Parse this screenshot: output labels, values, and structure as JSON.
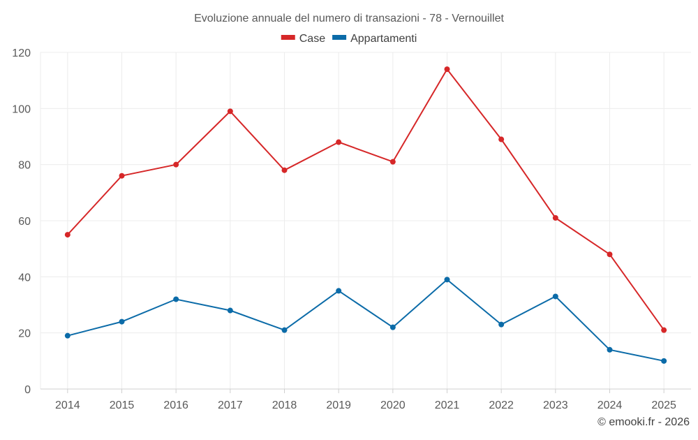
{
  "chart_data": {
    "type": "line",
    "title": "Evoluzione annuale del numero di transazioni - 78 - Vernouillet",
    "xlabel": "",
    "ylabel": "",
    "categories": [
      "2014",
      "2015",
      "2016",
      "2017",
      "2018",
      "2019",
      "2020",
      "2021",
      "2022",
      "2023",
      "2024",
      "2025"
    ],
    "ylim": [
      0,
      120
    ],
    "yticks": [
      0,
      20,
      40,
      60,
      80,
      100,
      120
    ],
    "grid": true,
    "legend_position": "top-center",
    "series": [
      {
        "name": "Case",
        "color": "#d62728",
        "values": [
          55,
          76,
          80,
          99,
          78,
          88,
          81,
          114,
          89,
          61,
          48,
          21
        ]
      },
      {
        "name": "Appartamenti",
        "color": "#0b6ba8",
        "values": [
          19,
          24,
          32,
          28,
          21,
          35,
          22,
          39,
          23,
          33,
          14,
          10
        ]
      }
    ]
  },
  "credit": "© emooki.fr - 2026"
}
